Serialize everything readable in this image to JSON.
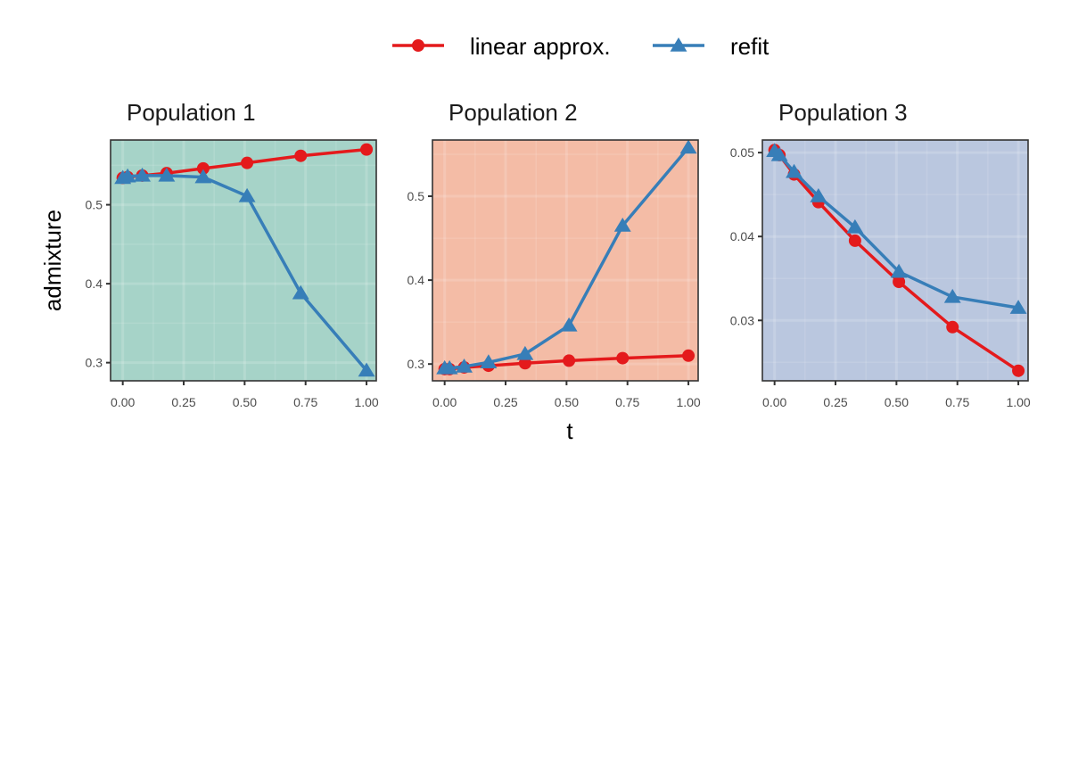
{
  "legend": {
    "items": [
      {
        "label": "linear approx.",
        "color": "#e41a1c",
        "marker": "circle"
      },
      {
        "label": "refit",
        "color": "#377eb8",
        "marker": "triangle"
      }
    ],
    "position": "top-center"
  },
  "axis_titles": {
    "x": "t",
    "y": "admixture"
  },
  "chart_data": [
    {
      "type": "line",
      "title": "Population 1",
      "panel_color": "#a6d3c8",
      "x": [
        0,
        0.02,
        0.08,
        0.18,
        0.33,
        0.51,
        0.73,
        1.0
      ],
      "xlim": [
        -0.05,
        1.04
      ],
      "x_ticks": [
        "0.00",
        "0.25",
        "0.50",
        "0.75",
        "1.00"
      ],
      "x_tick_values": [
        0,
        0.25,
        0.5,
        0.75,
        1.0
      ],
      "ylim": [
        0.277,
        0.582
      ],
      "y_ticks": [
        "0.3",
        "0.4",
        "0.5"
      ],
      "y_tick_values": [
        0.3,
        0.4,
        0.5
      ],
      "grid": true,
      "series": [
        {
          "name": "linear approx.",
          "values": [
            0.534,
            0.535,
            0.537,
            0.54,
            0.546,
            0.553,
            0.562,
            0.57
          ]
        },
        {
          "name": "refit",
          "values": [
            0.534,
            0.536,
            0.537,
            0.537,
            0.535,
            0.511,
            0.388,
            0.29
          ]
        }
      ]
    },
    {
      "type": "line",
      "title": "Population 2",
      "panel_color": "#f4bca6",
      "x": [
        0,
        0.02,
        0.08,
        0.18,
        0.33,
        0.51,
        0.73,
        1.0
      ],
      "xlim": [
        -0.05,
        1.04
      ],
      "x_ticks": [
        "0.00",
        "0.25",
        "0.50",
        "0.75",
        "1.00"
      ],
      "x_tick_values": [
        0,
        0.25,
        0.5,
        0.75,
        1.0
      ],
      "ylim": [
        0.28,
        0.567
      ],
      "y_ticks": [
        "0.3",
        "0.4",
        "0.5"
      ],
      "y_tick_values": [
        0.3,
        0.4,
        0.5
      ],
      "grid": true,
      "series": [
        {
          "name": "linear approx.",
          "values": [
            0.294,
            0.294,
            0.296,
            0.298,
            0.301,
            0.304,
            0.307,
            0.31
          ]
        },
        {
          "name": "refit",
          "values": [
            0.295,
            0.295,
            0.297,
            0.302,
            0.312,
            0.346,
            0.465,
            0.558
          ]
        }
      ]
    },
    {
      "type": "line",
      "title": "Population 3",
      "panel_color": "#bac7df",
      "x": [
        0,
        0.02,
        0.08,
        0.18,
        0.33,
        0.51,
        0.73,
        1.0
      ],
      "xlim": [
        -0.05,
        1.04
      ],
      "x_ticks": [
        "0.00",
        "0.25",
        "0.50",
        "0.75",
        "1.00"
      ],
      "x_tick_values": [
        0,
        0.25,
        0.5,
        0.75,
        1.0
      ],
      "ylim": [
        0.0228,
        0.0515
      ],
      "y_ticks": [
        "0.03",
        "0.04",
        "0.05"
      ],
      "y_tick_values": [
        0.03,
        0.04,
        0.05
      ],
      "grid": true,
      "series": [
        {
          "name": "linear approx.",
          "values": [
            0.0503,
            0.0497,
            0.0474,
            0.0441,
            0.0395,
            0.0346,
            0.0292,
            0.024
          ]
        },
        {
          "name": "refit",
          "values": [
            0.0502,
            0.0497,
            0.0477,
            0.0448,
            0.0411,
            0.0358,
            0.0328,
            0.0315
          ]
        }
      ]
    }
  ]
}
